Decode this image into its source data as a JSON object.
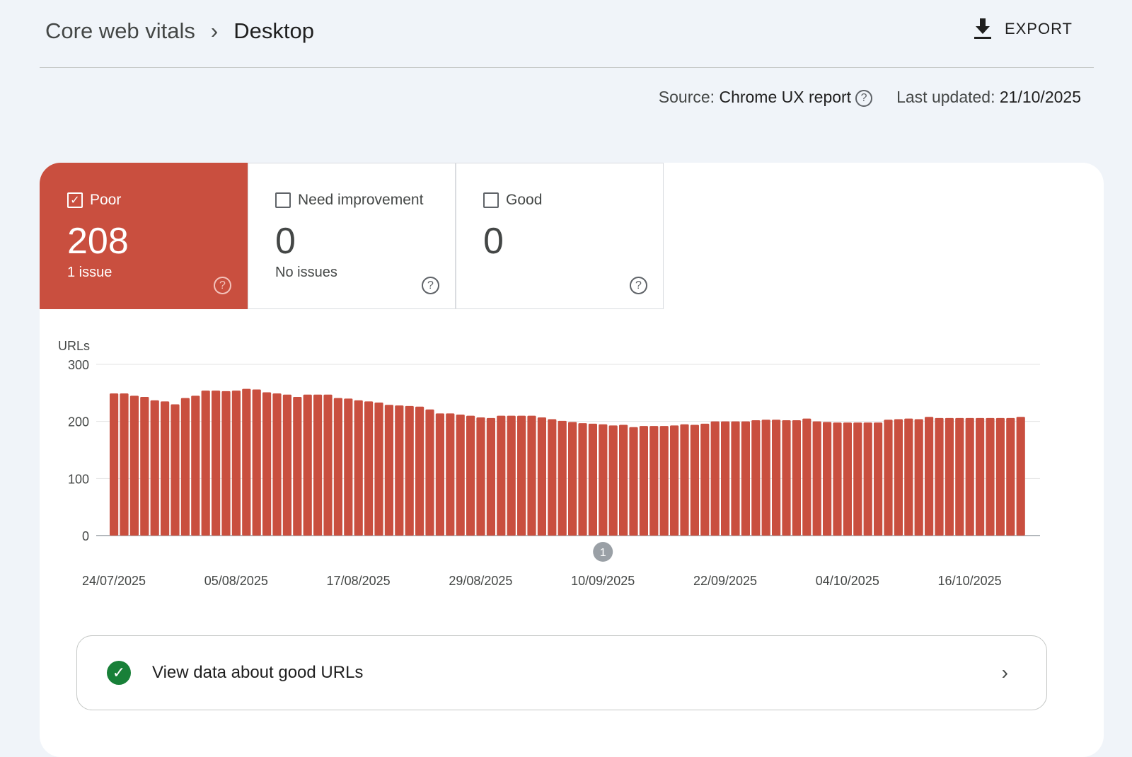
{
  "breadcrumb": {
    "parent": "Core web vitals",
    "current": "Desktop"
  },
  "export_label": "EXPORT",
  "meta": {
    "source_label": "Source:",
    "source_value": "Chrome UX report",
    "updated_label": "Last updated:",
    "updated_value": "21/10/2025"
  },
  "tiles": [
    {
      "label": "Poor",
      "count": "208",
      "sub": "1 issue",
      "checked": true,
      "color": "#c94f3f"
    },
    {
      "label": "Need improvement",
      "count": "0",
      "sub": "No issues",
      "checked": false
    },
    {
      "label": "Good",
      "count": "0",
      "sub": "",
      "checked": false
    }
  ],
  "chart_data": {
    "type": "bar",
    "ylabel": "URLs",
    "ylim": [
      0,
      300
    ],
    "yticks": [
      0,
      100,
      200,
      300
    ],
    "xtick_labels": [
      "24/07/2025",
      "05/08/2025",
      "17/08/2025",
      "29/08/2025",
      "10/09/2025",
      "22/09/2025",
      "04/10/2025",
      "16/10/2025"
    ],
    "annotation": "1",
    "color": "#c94f3f",
    "grid": true,
    "x_start": "24/07/2025",
    "x_end": "21/10/2025",
    "values": [
      249,
      249,
      245,
      243,
      237,
      235,
      230,
      241,
      245,
      254,
      254,
      253,
      254,
      257,
      256,
      251,
      249,
      247,
      243,
      247,
      247,
      247,
      241,
      240,
      237,
      235,
      233,
      229,
      228,
      227,
      226,
      221,
      214,
      214,
      212,
      210,
      207,
      206,
      210,
      210,
      210,
      210,
      207,
      204,
      201,
      199,
      197,
      196,
      195,
      193,
      194,
      190,
      192,
      192,
      192,
      193,
      195,
      194,
      196,
      200,
      200,
      200,
      200,
      202,
      203,
      203,
      202,
      202,
      205,
      200,
      199,
      198,
      198,
      198,
      198,
      198,
      203,
      204,
      205,
      204,
      208,
      206,
      206,
      206,
      206,
      206,
      206,
      206,
      206,
      208
    ]
  },
  "good_link": "View data about good URLs"
}
